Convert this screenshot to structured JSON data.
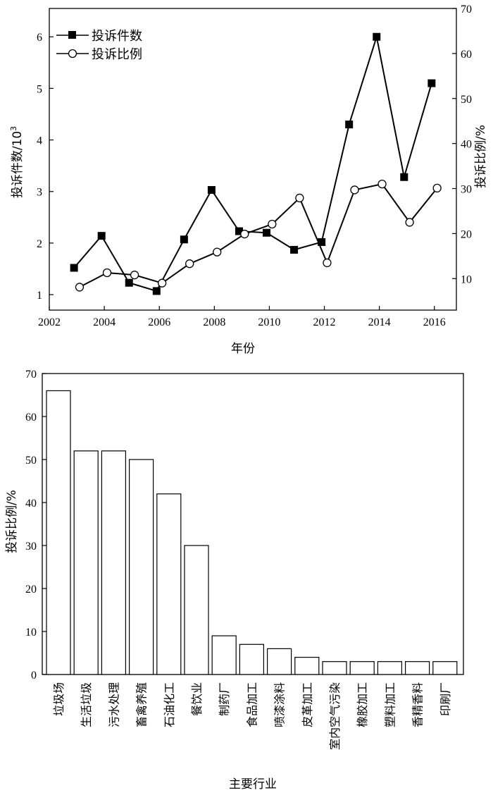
{
  "chart_data": [
    {
      "type": "line",
      "x": [
        2003,
        2004,
        2005,
        2006,
        2007,
        2008,
        2009,
        2010,
        2011,
        2012,
        2013,
        2014,
        2015,
        2016
      ],
      "series": [
        {
          "name": "投诉件数",
          "axis": "left",
          "marker": "filled-square",
          "x": [
            2002.9,
            2003.9,
            2004.9,
            2005.9,
            2006.9,
            2007.9,
            2008.9,
            2009.9,
            2010.9,
            2011.9,
            2012.9,
            2013.9,
            2014.9,
            2015.9
          ],
          "values": [
            1.52,
            2.14,
            1.23,
            1.07,
            2.07,
            3.03,
            2.23,
            2.2,
            1.87,
            2.02,
            4.3,
            6.0,
            3.28,
            5.1
          ]
        },
        {
          "name": "投诉比例",
          "axis": "right",
          "marker": "open-circle",
          "x": [
            2003.1,
            2004.1,
            2005.1,
            2006.1,
            2007.1,
            2008.1,
            2009.1,
            2010.1,
            2011.1,
            2012.1,
            2013.1,
            2014.1,
            2015.1,
            2016.1
          ],
          "values": [
            8.1,
            11.3,
            10.8,
            9.0,
            13.3,
            15.9,
            19.9,
            22.1,
            27.9,
            13.5,
            29.7,
            31.0,
            22.5,
            30.1
          ]
        }
      ],
      "xlabel": "年份",
      "ylabel_left": "投诉件数/10",
      "ylabel_left_sup": "3",
      "ylabel_right": "投诉比例/%",
      "xlim": [
        2002,
        2016.8
      ],
      "ylim_left": [
        0.7,
        6.55
      ],
      "ylim_right": [
        3,
        70
      ],
      "xticks": [
        2002,
        2004,
        2006,
        2008,
        2010,
        2012,
        2014,
        2016
      ],
      "yticks_left": [
        1,
        2,
        3,
        4,
        5,
        6
      ],
      "yticks_right": [
        10,
        20,
        30,
        40,
        50,
        60,
        70
      ],
      "legend": "top-left",
      "grid": false
    },
    {
      "type": "bar",
      "categories": [
        "垃圾场",
        "生活垃圾",
        "污水处理",
        "畜禽养殖",
        "石油化工",
        "餐饮业",
        "制药厂",
        "食品加工",
        "喷漆涂料",
        "皮革加工",
        "室内空气污染",
        "橡胶加工",
        "塑料加工",
        "香精香料",
        "印刷厂"
      ],
      "values": [
        66,
        52,
        52,
        50,
        42,
        30,
        9,
        7,
        6,
        4,
        3,
        3,
        3,
        3,
        3
      ],
      "xlabel": "主要行业",
      "ylabel": "投诉比例/%",
      "ylim": [
        0,
        70
      ],
      "yticks": [
        0,
        10,
        20,
        30,
        40,
        50,
        60,
        70
      ],
      "grid": false
    }
  ]
}
